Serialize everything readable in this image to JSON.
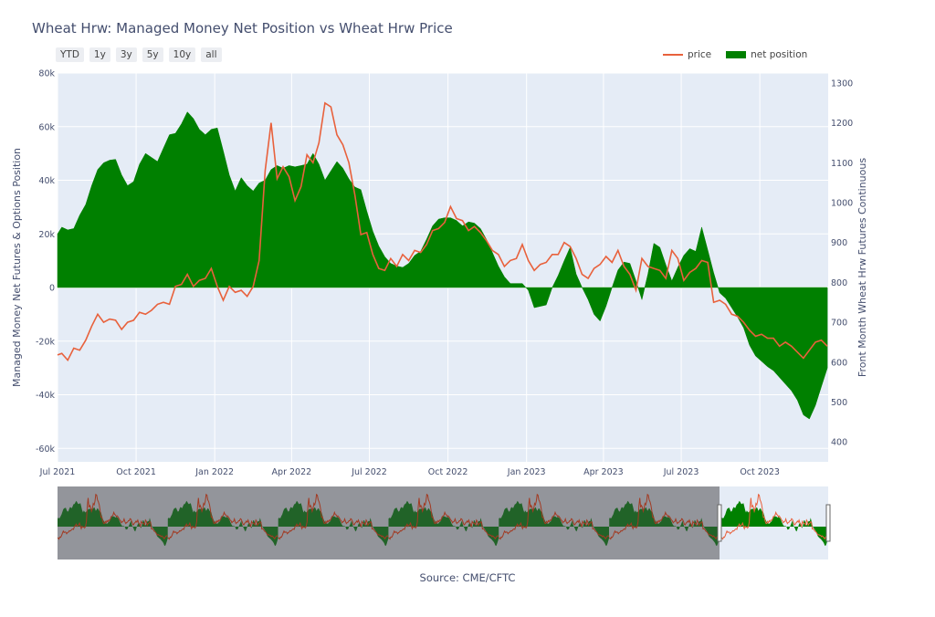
{
  "title": "Wheat Hrw: Managed Money Net Position vs Wheat Hrw Price",
  "range_buttons": [
    "YTD",
    "1y",
    "3y",
    "5y",
    "10y",
    "all"
  ],
  "legend": {
    "price": "price",
    "net_position": "net position"
  },
  "source": "Source: CME/CFTC",
  "colors": {
    "price": "#e8613c",
    "net_position": "#008000",
    "plot_bg": "#e5ecf6",
    "range_shade": "#8a8c91"
  },
  "chart_data": {
    "type": "area",
    "title": "Wheat Hrw: Managed Money Net Position vs Wheat Hrw Price",
    "xlabel": "",
    "ylabel": "Managed Money Net Futures & Options Position",
    "y2label": "Front Month Wheat Hrw Futures Continuous",
    "xlim": [
      "2021-07-01",
      "2023-12-20"
    ],
    "ylim": [
      -65000,
      80000
    ],
    "y2lim": [
      350,
      1325
    ],
    "x_ticks": [
      "Jul 2021",
      "Oct 2021",
      "Jan 2022",
      "Apr 2022",
      "Jul 2022",
      "Oct 2022",
      "Jan 2023",
      "Apr 2023",
      "Jul 2023",
      "Oct 2023"
    ],
    "y_ticks": [
      "-60k",
      "-40k",
      "-20k",
      "0",
      "20k",
      "40k",
      "60k",
      "80k"
    ],
    "y2_ticks": [
      "400",
      "500",
      "600",
      "700",
      "800",
      "900",
      "1000",
      "1100",
      "1200",
      "1300"
    ],
    "grid": true,
    "legend_position": "top-right",
    "series": [
      {
        "name": "net position",
        "axis": "left",
        "points": [
          [
            "2021-07-01",
            20000
          ],
          [
            "2021-07-06",
            22500
          ],
          [
            "2021-07-13",
            21500
          ],
          [
            "2021-07-20",
            22000
          ],
          [
            "2021-07-27",
            27000
          ],
          [
            "2021-08-03",
            31000
          ],
          [
            "2021-08-10",
            38000
          ],
          [
            "2021-08-17",
            44000
          ],
          [
            "2021-08-24",
            46500
          ],
          [
            "2021-08-31",
            47500
          ],
          [
            "2021-09-07",
            47800
          ],
          [
            "2021-09-14",
            42000
          ],
          [
            "2021-09-21",
            38000
          ],
          [
            "2021-09-28",
            39500
          ],
          [
            "2021-10-05",
            46000
          ],
          [
            "2021-10-12",
            50000
          ],
          [
            "2021-10-19",
            48500
          ],
          [
            "2021-10-26",
            47000
          ],
          [
            "2021-11-02",
            52000
          ],
          [
            "2021-11-09",
            57000
          ],
          [
            "2021-11-16",
            57500
          ],
          [
            "2021-11-23",
            61000
          ],
          [
            "2021-11-30",
            65500
          ],
          [
            "2021-12-07",
            63000
          ],
          [
            "2021-12-14",
            59000
          ],
          [
            "2021-12-21",
            57000
          ],
          [
            "2021-12-28",
            59000
          ],
          [
            "2022-01-04",
            59500
          ],
          [
            "2022-01-11",
            51000
          ],
          [
            "2022-01-18",
            42000
          ],
          [
            "2022-01-25",
            36000
          ],
          [
            "2022-02-01",
            41000
          ],
          [
            "2022-02-08",
            38000
          ],
          [
            "2022-02-15",
            36000
          ],
          [
            "2022-02-22",
            39000
          ],
          [
            "2022-03-01",
            40000
          ],
          [
            "2022-03-08",
            44000
          ],
          [
            "2022-03-15",
            45500
          ],
          [
            "2022-03-22",
            44500
          ],
          [
            "2022-03-29",
            45500
          ],
          [
            "2022-04-05",
            45000
          ],
          [
            "2022-04-12",
            45500
          ],
          [
            "2022-04-19",
            46000
          ],
          [
            "2022-04-26",
            50000
          ],
          [
            "2022-05-03",
            46000
          ],
          [
            "2022-05-10",
            40000
          ],
          [
            "2022-05-17",
            43500
          ],
          [
            "2022-05-24",
            47000
          ],
          [
            "2022-05-31",
            44500
          ],
          [
            "2022-06-07",
            40500
          ],
          [
            "2022-06-14",
            37500
          ],
          [
            "2022-06-21",
            36500
          ],
          [
            "2022-06-28",
            28500
          ],
          [
            "2022-07-05",
            21000
          ],
          [
            "2022-07-12",
            15500
          ],
          [
            "2022-07-19",
            11500
          ],
          [
            "2022-07-26",
            9000
          ],
          [
            "2022-08-02",
            8000
          ],
          [
            "2022-08-09",
            7500
          ],
          [
            "2022-08-16",
            9000
          ],
          [
            "2022-08-23",
            12000
          ],
          [
            "2022-08-30",
            13500
          ],
          [
            "2022-09-06",
            18000
          ],
          [
            "2022-09-13",
            23000
          ],
          [
            "2022-09-20",
            25500
          ],
          [
            "2022-09-27",
            26000
          ],
          [
            "2022-10-04",
            26000
          ],
          [
            "2022-10-11",
            25000
          ],
          [
            "2022-10-18",
            23000
          ],
          [
            "2022-10-25",
            24500
          ],
          [
            "2022-11-01",
            24000
          ],
          [
            "2022-11-08",
            22000
          ],
          [
            "2022-11-15",
            18000
          ],
          [
            "2022-11-22",
            13000
          ],
          [
            "2022-11-29",
            8000
          ],
          [
            "2022-12-06",
            4000
          ],
          [
            "2022-12-13",
            1500
          ],
          [
            "2022-12-20",
            1500
          ],
          [
            "2022-12-27",
            1500
          ],
          [
            "2023-01-03",
            -1000
          ],
          [
            "2023-01-10",
            -7500
          ],
          [
            "2023-01-17",
            -7000
          ],
          [
            "2023-01-24",
            -6500
          ],
          [
            "2023-01-31",
            0
          ],
          [
            "2023-02-07",
            4500
          ],
          [
            "2023-02-14",
            10000
          ],
          [
            "2023-02-21",
            15000
          ],
          [
            "2023-02-28",
            5000
          ],
          [
            "2023-03-07",
            0
          ],
          [
            "2023-03-14",
            -4500
          ],
          [
            "2023-03-21",
            -10000
          ],
          [
            "2023-03-28",
            -12500
          ],
          [
            "2023-04-04",
            -7000
          ],
          [
            "2023-04-11",
            0
          ],
          [
            "2023-04-18",
            6500
          ],
          [
            "2023-04-25",
            9500
          ],
          [
            "2023-05-02",
            9000
          ],
          [
            "2023-05-09",
            2500
          ],
          [
            "2023-05-16",
            -4500
          ],
          [
            "2023-05-23",
            5000
          ],
          [
            "2023-05-30",
            16500
          ],
          [
            "2023-06-06",
            15000
          ],
          [
            "2023-06-13",
            8500
          ],
          [
            "2023-06-20",
            2500
          ],
          [
            "2023-06-27",
            7500
          ],
          [
            "2023-07-04",
            12000
          ],
          [
            "2023-07-11",
            14500
          ],
          [
            "2023-07-18",
            13500
          ],
          [
            "2023-07-25",
            22500
          ],
          [
            "2023-08-01",
            14000
          ],
          [
            "2023-08-08",
            5500
          ],
          [
            "2023-08-15",
            -2000
          ],
          [
            "2023-08-22",
            -4000
          ],
          [
            "2023-08-29",
            -7500
          ],
          [
            "2023-09-05",
            -11000
          ],
          [
            "2023-09-12",
            -15000
          ],
          [
            "2023-09-19",
            -21500
          ],
          [
            "2023-09-26",
            -25500
          ],
          [
            "2023-10-03",
            -27500
          ],
          [
            "2023-10-10",
            -29500
          ],
          [
            "2023-10-17",
            -31000
          ],
          [
            "2023-10-24",
            -33500
          ],
          [
            "2023-10-31",
            -36000
          ],
          [
            "2023-11-07",
            -38500
          ],
          [
            "2023-11-14",
            -42000
          ],
          [
            "2023-11-21",
            -47500
          ],
          [
            "2023-11-28",
            -49000
          ],
          [
            "2023-12-05",
            -44000
          ],
          [
            "2023-12-12",
            -37000
          ],
          [
            "2023-12-19",
            -30000
          ]
        ]
      },
      {
        "name": "price",
        "axis": "right",
        "points": [
          [
            "2021-07-01",
            618
          ],
          [
            "2021-07-06",
            622
          ],
          [
            "2021-07-13",
            605
          ],
          [
            "2021-07-20",
            635
          ],
          [
            "2021-07-27",
            630
          ],
          [
            "2021-08-03",
            655
          ],
          [
            "2021-08-10",
            690
          ],
          [
            "2021-08-17",
            720
          ],
          [
            "2021-08-24",
            700
          ],
          [
            "2021-08-31",
            708
          ],
          [
            "2021-09-07",
            705
          ],
          [
            "2021-09-14",
            682
          ],
          [
            "2021-09-21",
            700
          ],
          [
            "2021-09-28",
            705
          ],
          [
            "2021-10-05",
            725
          ],
          [
            "2021-10-12",
            720
          ],
          [
            "2021-10-19",
            730
          ],
          [
            "2021-10-26",
            745
          ],
          [
            "2021-11-02",
            750
          ],
          [
            "2021-11-09",
            745
          ],
          [
            "2021-11-16",
            790
          ],
          [
            "2021-11-23",
            795
          ],
          [
            "2021-11-30",
            820
          ],
          [
            "2021-12-07",
            790
          ],
          [
            "2021-12-14",
            805
          ],
          [
            "2021-12-21",
            810
          ],
          [
            "2021-12-28",
            835
          ],
          [
            "2022-01-04",
            790
          ],
          [
            "2022-01-11",
            755
          ],
          [
            "2022-01-18",
            790
          ],
          [
            "2022-01-25",
            775
          ],
          [
            "2022-02-01",
            780
          ],
          [
            "2022-02-08",
            765
          ],
          [
            "2022-02-15",
            790
          ],
          [
            "2022-02-22",
            855
          ],
          [
            "2022-03-01",
            1080
          ],
          [
            "2022-03-08",
            1200
          ],
          [
            "2022-03-15",
            1060
          ],
          [
            "2022-03-22",
            1090
          ],
          [
            "2022-03-29",
            1065
          ],
          [
            "2022-04-05",
            1005
          ],
          [
            "2022-04-12",
            1040
          ],
          [
            "2022-04-19",
            1120
          ],
          [
            "2022-04-26",
            1100
          ],
          [
            "2022-05-03",
            1150
          ],
          [
            "2022-05-10",
            1250
          ],
          [
            "2022-05-17",
            1240
          ],
          [
            "2022-05-24",
            1170
          ],
          [
            "2022-05-31",
            1145
          ],
          [
            "2022-06-07",
            1100
          ],
          [
            "2022-06-14",
            1020
          ],
          [
            "2022-06-21",
            920
          ],
          [
            "2022-06-28",
            925
          ],
          [
            "2022-07-05",
            870
          ],
          [
            "2022-07-12",
            835
          ],
          [
            "2022-07-19",
            830
          ],
          [
            "2022-07-26",
            860
          ],
          [
            "2022-08-02",
            840
          ],
          [
            "2022-08-09",
            870
          ],
          [
            "2022-08-16",
            855
          ],
          [
            "2022-08-23",
            880
          ],
          [
            "2022-08-30",
            875
          ],
          [
            "2022-09-06",
            895
          ],
          [
            "2022-09-13",
            930
          ],
          [
            "2022-09-20",
            935
          ],
          [
            "2022-09-27",
            950
          ],
          [
            "2022-10-04",
            990
          ],
          [
            "2022-10-11",
            960
          ],
          [
            "2022-10-18",
            955
          ],
          [
            "2022-10-25",
            930
          ],
          [
            "2022-11-01",
            940
          ],
          [
            "2022-11-08",
            925
          ],
          [
            "2022-11-15",
            905
          ],
          [
            "2022-11-22",
            880
          ],
          [
            "2022-11-29",
            870
          ],
          [
            "2022-12-06",
            840
          ],
          [
            "2022-12-13",
            855
          ],
          [
            "2022-12-20",
            860
          ],
          [
            "2022-12-27",
            895
          ],
          [
            "2023-01-03",
            855
          ],
          [
            "2023-01-10",
            830
          ],
          [
            "2023-01-17",
            845
          ],
          [
            "2023-01-24",
            850
          ],
          [
            "2023-01-31",
            870
          ],
          [
            "2023-02-07",
            870
          ],
          [
            "2023-02-14",
            900
          ],
          [
            "2023-02-21",
            890
          ],
          [
            "2023-02-28",
            860
          ],
          [
            "2023-03-07",
            820
          ],
          [
            "2023-03-14",
            810
          ],
          [
            "2023-03-21",
            835
          ],
          [
            "2023-03-28",
            845
          ],
          [
            "2023-04-04",
            865
          ],
          [
            "2023-04-11",
            850
          ],
          [
            "2023-04-18",
            880
          ],
          [
            "2023-04-25",
            840
          ],
          [
            "2023-05-02",
            820
          ],
          [
            "2023-05-09",
            780
          ],
          [
            "2023-05-16",
            860
          ],
          [
            "2023-05-23",
            840
          ],
          [
            "2023-05-30",
            835
          ],
          [
            "2023-06-06",
            830
          ],
          [
            "2023-06-13",
            810
          ],
          [
            "2023-06-20",
            880
          ],
          [
            "2023-06-27",
            860
          ],
          [
            "2023-07-04",
            805
          ],
          [
            "2023-07-11",
            825
          ],
          [
            "2023-07-18",
            835
          ],
          [
            "2023-07-25",
            855
          ],
          [
            "2023-08-01",
            850
          ],
          [
            "2023-08-08",
            750
          ],
          [
            "2023-08-15",
            755
          ],
          [
            "2023-08-22",
            745
          ],
          [
            "2023-08-29",
            720
          ],
          [
            "2023-09-05",
            715
          ],
          [
            "2023-09-12",
            700
          ],
          [
            "2023-09-19",
            680
          ],
          [
            "2023-09-26",
            665
          ],
          [
            "2023-10-03",
            670
          ],
          [
            "2023-10-10",
            660
          ],
          [
            "2023-10-17",
            660
          ],
          [
            "2023-10-24",
            640
          ],
          [
            "2023-10-31",
            650
          ],
          [
            "2023-11-07",
            640
          ],
          [
            "2023-11-14",
            625
          ],
          [
            "2023-11-21",
            610
          ],
          [
            "2023-11-28",
            630
          ],
          [
            "2023-12-05",
            650
          ],
          [
            "2023-12-12",
            655
          ],
          [
            "2023-12-19",
            640
          ]
        ]
      }
    ]
  }
}
